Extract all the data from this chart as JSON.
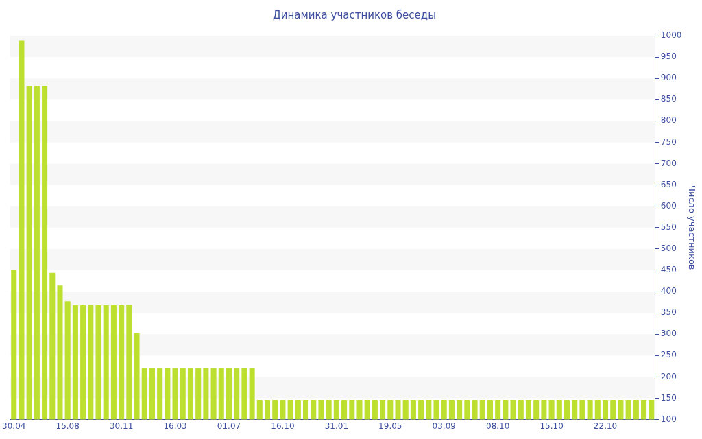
{
  "chart_data": {
    "type": "bar",
    "title": "Динамика участников беседы",
    "ylabel": "Число участников",
    "categories": [
      "30.04",
      null,
      null,
      null,
      null,
      null,
      null,
      "15.08",
      null,
      null,
      null,
      null,
      null,
      null,
      "30.11",
      null,
      null,
      null,
      null,
      null,
      null,
      "16.03",
      null,
      null,
      null,
      null,
      null,
      null,
      "01.07",
      null,
      null,
      null,
      null,
      null,
      null,
      "16.10",
      null,
      null,
      null,
      null,
      null,
      null,
      "31.01",
      null,
      null,
      null,
      null,
      null,
      null,
      "19.05",
      null,
      null,
      null,
      null,
      null,
      null,
      "03.09",
      null,
      null,
      null,
      null,
      null,
      null,
      "08.10",
      null,
      null,
      null,
      null,
      null,
      null,
      "15.10",
      null,
      null,
      null,
      null,
      null,
      null,
      "22.10",
      null,
      null,
      null,
      null,
      null,
      null
    ],
    "values": [
      450,
      988,
      882,
      882,
      882,
      444,
      414,
      377,
      368,
      368,
      368,
      368,
      368,
      368,
      368,
      368,
      303,
      221,
      221,
      221,
      221,
      221,
      221,
      221,
      221,
      221,
      221,
      221,
      221,
      221,
      221,
      221,
      146,
      146,
      146,
      146,
      146,
      146,
      146,
      146,
      146,
      146,
      146,
      146,
      146,
      146,
      146,
      146,
      146,
      146,
      146,
      146,
      146,
      146,
      146,
      146,
      146,
      146,
      146,
      146,
      146,
      146,
      146,
      146,
      146,
      146,
      146,
      146,
      146,
      146,
      146,
      146,
      146,
      146,
      146,
      146,
      146,
      146,
      146,
      146,
      146,
      146,
      146,
      146
    ],
    "color": "#bde030",
    "ylim": [
      100,
      1000
    ],
    "yticks": [
      100,
      150,
      200,
      250,
      300,
      350,
      400,
      450,
      500,
      550,
      600,
      650,
      700,
      750,
      800,
      850,
      900,
      950,
      1000
    ],
    "bands": [
      {
        "axis": "y",
        "from": 950,
        "to": 1000,
        "color": "#f7f7f7"
      },
      {
        "axis": "y",
        "from": 850,
        "to": 900,
        "color": "#f7f7f7"
      },
      {
        "axis": "y",
        "from": 750,
        "to": 800,
        "color": "#f7f7f7"
      },
      {
        "axis": "y",
        "from": 650,
        "to": 700,
        "color": "#f7f7f7"
      },
      {
        "axis": "y",
        "from": 550,
        "to": 600,
        "color": "#f7f7f7"
      },
      {
        "axis": "y",
        "from": 450,
        "to": 500,
        "color": "#f7f7f7"
      },
      {
        "axis": "y",
        "from": 350,
        "to": 400,
        "color": "#f7f7f7"
      },
      {
        "axis": "y",
        "from": 250,
        "to": 300,
        "color": "#f7f7f7"
      },
      {
        "axis": "y",
        "from": 150,
        "to": 200,
        "color": "#f7f7f7"
      }
    ],
    "legend": false
  }
}
